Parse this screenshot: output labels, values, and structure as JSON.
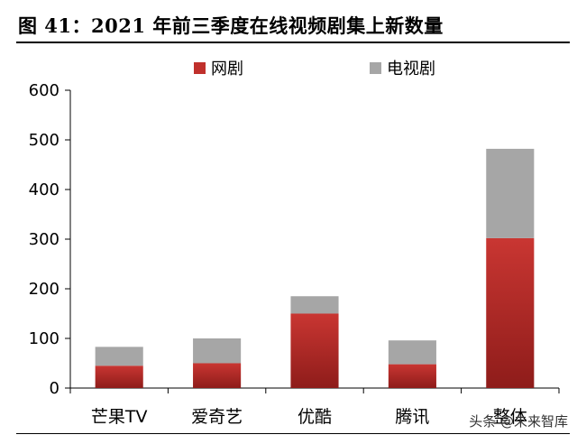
{
  "title": "图 41：2021 年前三季度在线视频剧集上新数量",
  "watermark": "头条 @未来智库",
  "colors": {
    "web_drama": "#c0302c",
    "tv_drama": "#a6a6a6",
    "axis": "#000000"
  },
  "chart_data": {
    "type": "bar",
    "stacked": true,
    "categories": [
      "芒果TV",
      "爱奇艺",
      "优酷",
      "腾讯",
      "整体"
    ],
    "series": [
      {
        "name": "网剧",
        "values": [
          45,
          50,
          150,
          48,
          302
        ]
      },
      {
        "name": "电视剧",
        "values": [
          38,
          50,
          35,
          48,
          180
        ]
      }
    ],
    "yticks": [
      "0",
      "100",
      "200",
      "300",
      "400",
      "500",
      "600"
    ],
    "ylim": [
      0,
      600
    ],
    "legend_position": "top",
    "grid": false
  }
}
